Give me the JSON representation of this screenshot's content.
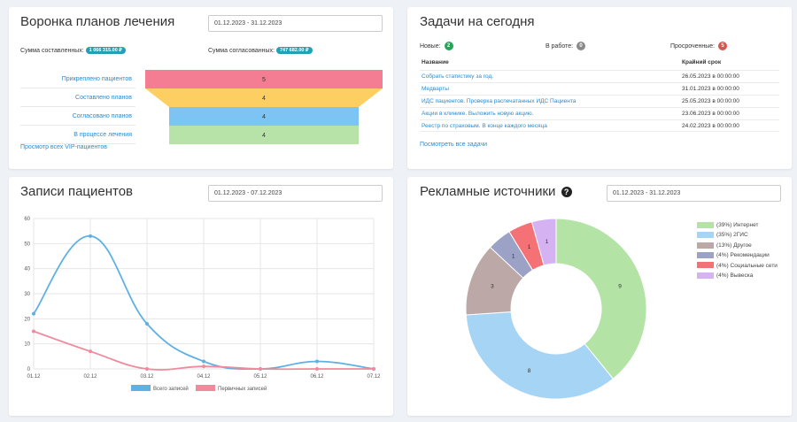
{
  "funnel": {
    "title": "Воронка планов лечения",
    "date_range": "01.12.2023 - 31.12.2023",
    "sum_created_label": "Сумма составленных:",
    "sum_created_value": "1 066 315.00 ₽",
    "sum_agreed_label": "Сумма согласованных:",
    "sum_agreed_value": "747 682.00 ₽",
    "stages": [
      {
        "label": "Прикреплено пациентов",
        "value": "5",
        "color": "#f47d93"
      },
      {
        "label": "Составлено планов",
        "value": "4",
        "color": "#fdcf63"
      },
      {
        "label": "Согласовано планов",
        "value": "4",
        "color": "#7cc4f3"
      },
      {
        "label": "В процессе лечения",
        "value": "4",
        "color": "#b7e3a9"
      }
    ],
    "vip_link": "Просмотр всех VIP-пациентов"
  },
  "tasks": {
    "title": "Задачи на сегодня",
    "new_label": "Новые:",
    "new_count": "2",
    "in_progress_label": "В работе:",
    "in_progress_count": "0",
    "overdue_label": "Просроченные:",
    "overdue_count": "5",
    "col_name": "Название",
    "col_deadline": "Крайний срок",
    "rows": [
      {
        "name": "Собрать статистику за год.",
        "deadline": "26.05.2023 в 00:00:00"
      },
      {
        "name": "Медварты",
        "deadline": "31.01.2023 в 00:00:00"
      },
      {
        "name": "ИДС пациентов. Проверка распечатанных ИДС Пациента",
        "deadline": "25.05.2023 в 00:00:00"
      },
      {
        "name": "Акции в клинике. Выложить новую акцию.",
        "deadline": "23.06.2023 в 00:00:00"
      },
      {
        "name": "Реестр по страховым. В конце каждого месяца",
        "deadline": "24.02.2023 в 00:00:00"
      }
    ],
    "all_link": "Посмотреть все задачи",
    "colors": {
      "new": "#27a35a",
      "in_progress": "#8a8a8a",
      "overdue": "#d9534f"
    }
  },
  "records": {
    "title": "Записи пациентов",
    "date_range": "01.12.2023 - 07.12.2023"
  },
  "ads": {
    "title": "Рекламные источники",
    "date_range": "01.12.2023 - 31.12.2023"
  },
  "chart_data": [
    {
      "type": "line",
      "x": [
        "01.12",
        "02.12",
        "03.12",
        "04.12",
        "05.12",
        "06.12",
        "07.12"
      ],
      "ylim": [
        0,
        60
      ],
      "yticks": [
        "0",
        "10",
        "20",
        "30",
        "40",
        "50",
        "60"
      ],
      "series": [
        {
          "name": "Всего записей",
          "values": [
            22,
            53,
            18,
            3,
            0,
            3,
            0
          ],
          "color": "#5eb1e3"
        },
        {
          "name": "Первичных записей",
          "values": [
            15,
            7,
            0,
            1,
            0,
            0,
            0
          ],
          "color": "#f08a9c"
        }
      ],
      "grid": true,
      "legend": "bottom"
    },
    {
      "type": "pie",
      "donut": true,
      "slices": [
        {
          "label": "(39%) Интернет",
          "value": 9,
          "color": "#b4e3a6"
        },
        {
          "label": "(35%) 2ГИС",
          "value": 8,
          "color": "#a5d4f5"
        },
        {
          "label": "(13%) Другое",
          "value": 3,
          "color": "#bca8a6"
        },
        {
          "label": "(4%) Рекомендации",
          "value": 1,
          "color": "#9ba2c6"
        },
        {
          "label": "(4%) Социальные сети",
          "value": 1,
          "color": "#f47175"
        },
        {
          "label": "(4%) Вывеска",
          "value": 1,
          "color": "#d5b3f3"
        }
      ],
      "legend": "right"
    }
  ]
}
